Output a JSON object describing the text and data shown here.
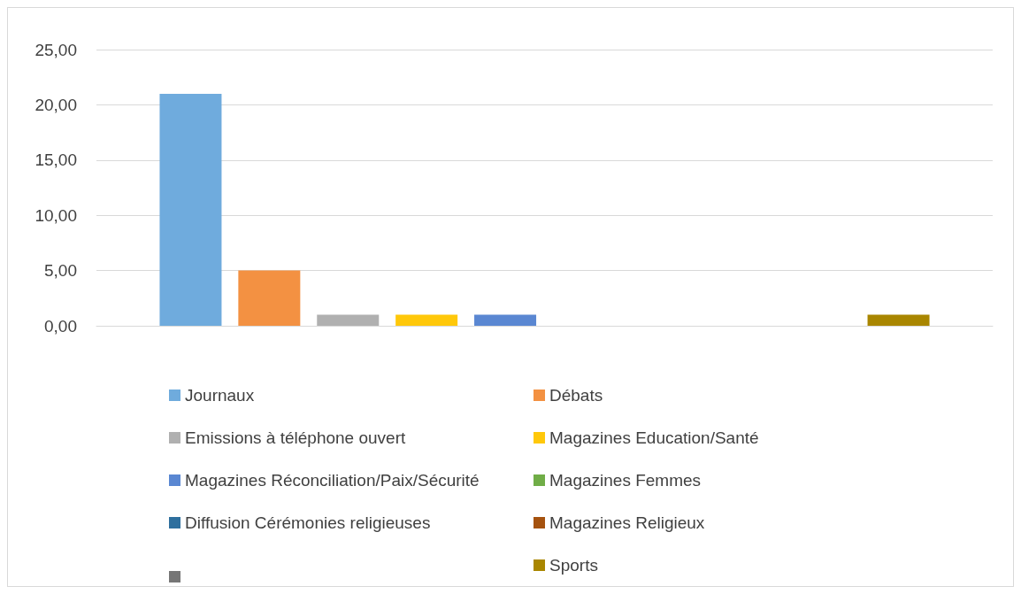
{
  "chart_data": {
    "type": "bar",
    "categories": [
      null
    ],
    "series": [
      {
        "name": "Journaux",
        "color": "#6fabdd",
        "values": [
          21
        ]
      },
      {
        "name": "Débats",
        "color": "#f39142",
        "values": [
          5
        ]
      },
      {
        "name": "Emissions à téléphone ouvert",
        "color": "#b0b0b0",
        "values": [
          1
        ]
      },
      {
        "name": "Magazines Education/Santé",
        "color": "#ffc80a",
        "values": [
          1
        ]
      },
      {
        "name": "Magazines Réconciliation/Paix/Sécurité",
        "color": "#5a87d2",
        "values": [
          1
        ]
      },
      {
        "name": "Magazines Femmes",
        "color": "#70ad47",
        "values": [
          0
        ]
      },
      {
        "name": "Diffusion Cérémonies religieuses",
        "color": "#2e6f9e",
        "values": [
          0
        ]
      },
      {
        "name": "Magazines Religieux",
        "color": "#a5520f",
        "values": [
          0
        ]
      },
      {
        "color": "#767676",
        "values": [
          0
        ]
      },
      {
        "name": "Sports",
        "color": "#a98600",
        "values": [
          1
        ]
      }
    ],
    "ylim": [
      0,
      25
    ],
    "yticks": [
      {
        "value": 0,
        "label": "0,00"
      },
      {
        "value": 5,
        "label": "5,00"
      },
      {
        "value": 10,
        "label": "10,00"
      },
      {
        "value": 15,
        "label": "15,00"
      },
      {
        "value": 20,
        "label": "20,00"
      },
      {
        "value": 25,
        "label": "25,00"
      }
    ],
    "grid": "y",
    "legend": "bottom"
  }
}
